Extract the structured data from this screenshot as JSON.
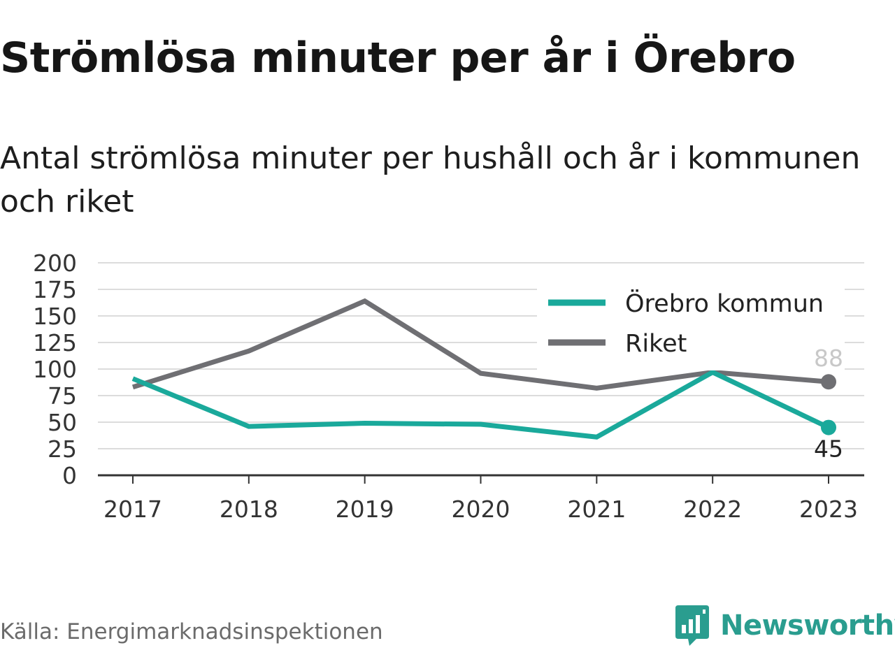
{
  "title": "Strömlösa minuter per år i Örebro",
  "subtitle": "Antal strömlösa minuter per hushåll och år i kommunen och riket",
  "source": "Källa: Energimarknadsinspektionen",
  "brand": {
    "name": "Newsworthy",
    "icon": "bar-chart-speech-bubble-icon",
    "color": "#2a9d8f"
  },
  "chart_data": {
    "type": "line",
    "x": [
      "2017",
      "2018",
      "2019",
      "2020",
      "2021",
      "2022",
      "2023"
    ],
    "ylim": [
      0,
      200
    ],
    "yticks": [
      0,
      25,
      50,
      75,
      100,
      125,
      150,
      175,
      200
    ],
    "grid": true,
    "legend_position": "top-right",
    "series": [
      {
        "name": "Örebro kommun",
        "color": "#1aa99b",
        "values": [
          91,
          46,
          49,
          48,
          36,
          97,
          45
        ],
        "end_label": "45",
        "end_label_color": "#222222"
      },
      {
        "name": "Riket",
        "color": "#6f6f73",
        "values": [
          83,
          117,
          164,
          96,
          82,
          97,
          88
        ],
        "end_label": "88",
        "end_label_color": "#c8c8c8"
      }
    ]
  }
}
